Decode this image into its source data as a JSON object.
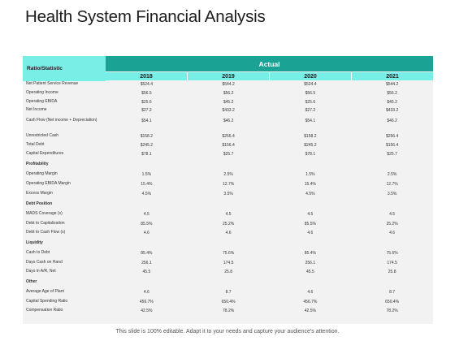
{
  "title": "Health System Financial Analysis",
  "table": {
    "ratio_header": "Ratio/Statistic",
    "group_header": "Actual",
    "years": [
      "2018",
      "2019",
      "2020",
      "2021"
    ],
    "rows": [
      {
        "label": "Net Patient Service Revenue",
        "values": [
          "$524.4",
          "$544.2",
          "$524.4",
          "$544.2"
        ]
      },
      {
        "label": "Operating Income",
        "values": [
          "$56.5",
          "$56.2",
          "$56.5",
          "$56.2"
        ]
      },
      {
        "label": "Operating EBIDA",
        "values": [
          "$25.6",
          "$45.2",
          "$25.6",
          "$45.2"
        ]
      },
      {
        "label": "Net Income",
        "values": [
          "$27.2",
          "$433.2",
          "$27.2",
          "$433.2"
        ]
      },
      {
        "label": "Cash Flow (Net income + Depreciation)",
        "values": [
          "$54.1",
          "$46.2",
          "$54.1",
          "$46.2"
        ]
      },
      {
        "label": "Unrestricted Cash",
        "values": [
          "$158.2",
          "$256.4",
          "$158.2",
          "$256.4"
        ]
      },
      {
        "label": "Total Debt",
        "values": [
          "$245.2",
          "$156.4",
          "$245.2",
          "$156.4"
        ]
      },
      {
        "label": "Capital Expenditures",
        "values": [
          "$78.1",
          "$25.7",
          "$78.1",
          "$25.7"
        ]
      },
      {
        "label": "Profitability",
        "section": true,
        "values": [
          "",
          "",
          "",
          ""
        ]
      },
      {
        "label": "Operating Margin",
        "values": [
          "1.5%",
          "2.5%",
          "1.5%",
          "2.5%"
        ]
      },
      {
        "label": "Operating EBIDA Margin",
        "values": [
          "15.4%",
          "12.7%",
          "15.4%",
          "12.7%"
        ]
      },
      {
        "label": "Excess Margin",
        "values": [
          "4.5%",
          "3.5%",
          "4.5%",
          "3.5%"
        ]
      },
      {
        "label": "Debt Position",
        "section": true,
        "values": [
          "",
          "",
          "",
          ""
        ]
      },
      {
        "label": "MADS Coverage (x)",
        "values": [
          "4.5",
          "4.5",
          "4.5",
          "4.5"
        ]
      },
      {
        "label": "Debt to Capitalization",
        "values": [
          "85.5%",
          "25.2%",
          "85.5%",
          "25.2%"
        ]
      },
      {
        "label": "Debt to Cash Flow (x)",
        "values": [
          "4.6",
          "4.6",
          "4.6",
          "4.6"
        ]
      },
      {
        "label": "Liquidity",
        "section": true,
        "values": [
          "",
          "",
          "",
          ""
        ]
      },
      {
        "label": "Cash to Debt",
        "values": [
          "85.4%",
          "75.6%",
          "85.4%",
          "75.6%"
        ]
      },
      {
        "label": "Days Cash on Hand",
        "values": [
          "256.1",
          "174.5",
          "256.1",
          "174.5"
        ]
      },
      {
        "label": "Days in A/R, Net",
        "values": [
          "45.5",
          "25.8",
          "45.5",
          "25.8"
        ]
      },
      {
        "label": "Other",
        "section": true,
        "values": [
          "",
          "",
          "",
          ""
        ]
      },
      {
        "label": "Average Age of Plant",
        "values": [
          "4.6",
          "8.7",
          "4.6",
          "8.7"
        ]
      },
      {
        "label": "Capital Spending Ratio",
        "values": [
          "456.7%",
          "650.4%",
          "456.7%",
          "650.4%"
        ]
      },
      {
        "label": "Compensation Ratio",
        "values": [
          "42.5%",
          "78.2%",
          "42.5%",
          "78.2%"
        ]
      }
    ]
  },
  "footer": "This slide is 100% editable. Adapt it to your needs and capture your audience's attention.",
  "colors": {
    "header_dark": "#1aa395",
    "header_light": "#78efe6",
    "table_bg": "#f2f2f2"
  }
}
